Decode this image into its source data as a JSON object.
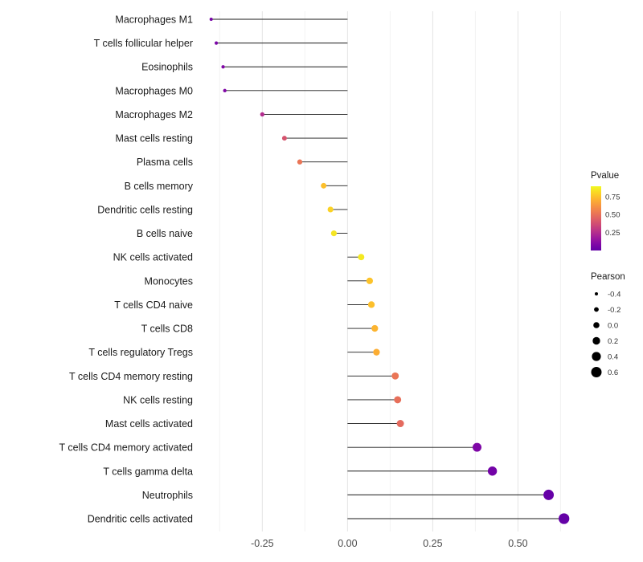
{
  "chart_data": {
    "type": "lollipop",
    "title": "",
    "xlabel": "",
    "ylabel": "",
    "grid": true,
    "background": "#ffffff",
    "xlim": [
      -0.43,
      0.69
    ],
    "x_ticks": [
      -0.25,
      0.0,
      0.25,
      0.5
    ],
    "x_tick_labels": [
      "-0.25",
      "0.00",
      "0.25",
      "0.50"
    ],
    "x_minor_ticks": [
      -0.375,
      -0.125,
      0.125,
      0.375,
      0.625
    ],
    "categories": [
      "Macrophages M1",
      "T cells follicular helper",
      "Eosinophils",
      "Macrophages M0",
      "Macrophages M2",
      "Mast cells resting",
      "Plasma cells",
      "B cells memory",
      "Dendritic cells resting",
      "B cells naive",
      "NK cells activated",
      "Monocytes",
      "T cells CD4 naive",
      "T cells CD8",
      "T cells regulatory Tregs",
      "T cells CD4 memory resting",
      "NK cells resting",
      "Mast cells activated",
      "T cells CD4 memory activated",
      "T cells gamma delta",
      "Neutrophils",
      "Dendritic cells activated"
    ],
    "series": [
      {
        "name": "Pearson",
        "values": [
          -0.4,
          -0.385,
          -0.365,
          -0.36,
          -0.25,
          -0.185,
          -0.14,
          -0.07,
          -0.05,
          -0.04,
          0.04,
          0.065,
          0.07,
          0.08,
          0.085,
          0.14,
          0.147,
          0.155,
          0.38,
          0.425,
          0.59,
          0.635
        ]
      },
      {
        "name": "Pvalue",
        "values": [
          0.06,
          0.07,
          0.09,
          0.09,
          0.25,
          0.4,
          0.52,
          0.75,
          0.8,
          0.85,
          0.86,
          0.76,
          0.75,
          0.72,
          0.7,
          0.52,
          0.5,
          0.48,
          0.08,
          0.05,
          0.01,
          0.005
        ]
      }
    ],
    "legend": {
      "position": "right",
      "color_title": "Pvalue",
      "color_tick_values": [
        0.75,
        0.5,
        0.25
      ],
      "color_tick_labels": [
        "0.75",
        "0.50",
        "0.25"
      ],
      "color_domain": [
        0,
        0.9
      ],
      "color_scale_hint": [
        "#6a00a8",
        "#b12a90",
        "#e16462",
        "#fca636",
        "#f0f921"
      ],
      "size_title": "Pearson",
      "size_tick_values": [
        -0.4,
        -0.2,
        0.0,
        0.2,
        0.4,
        0.6
      ],
      "size_tick_labels": [
        "-0.4",
        "-0.2",
        "0.0",
        "0.2",
        "0.4",
        "0.6"
      ],
      "size_dot_color": "#000000"
    },
    "stem_color": "#1a1a1a",
    "gridline_major_color": "#e4e4e4",
    "gridline_minor_color": "#f2f2f2",
    "axis_text_color": "#4a4a4a",
    "label_text_color": "#1a1a1a"
  }
}
